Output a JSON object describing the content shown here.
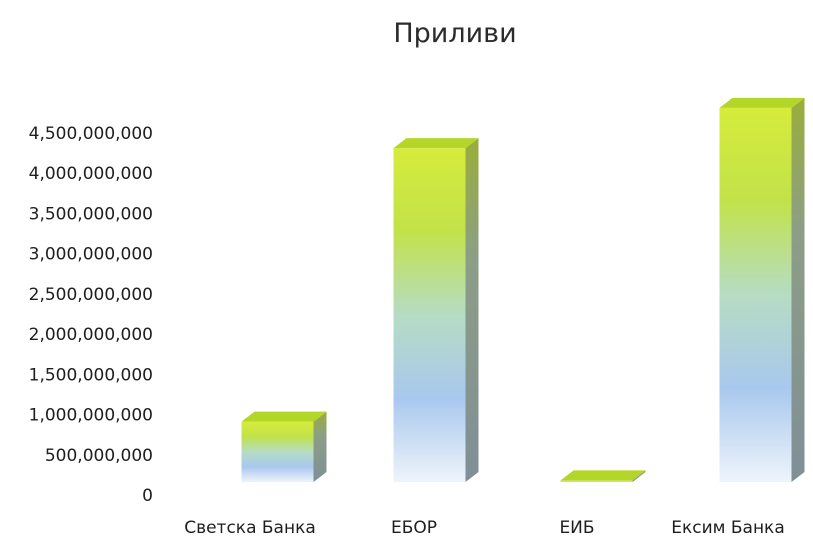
{
  "chart_data": {
    "type": "bar",
    "title": "Приливи",
    "categories": [
      "Светска Банка",
      "ЕБОР",
      "ЕИБ",
      "Ексим Банка"
    ],
    "values": [
      750000000,
      4150000000,
      20000000,
      4650000000
    ],
    "yticks": [
      "0",
      "500,000,000",
      "1,000,000,000",
      "1,500,000,000",
      "2,000,000,000",
      "2,500,000,000",
      "3,000,000,000",
      "3,500,000,000",
      "4,000,000,000",
      "4,500,000,000"
    ],
    "ylim": [
      0,
      4500000000
    ],
    "style": "3d-column",
    "grid": false,
    "legend": "none",
    "colors": {
      "top": "#b3d629",
      "front_top": "#c8e43a",
      "front_mid": "#a8d8b0",
      "front_low": "#a9c8ee",
      "front_bottom": "#e8f0f8",
      "side": "#8a9a93"
    }
  }
}
